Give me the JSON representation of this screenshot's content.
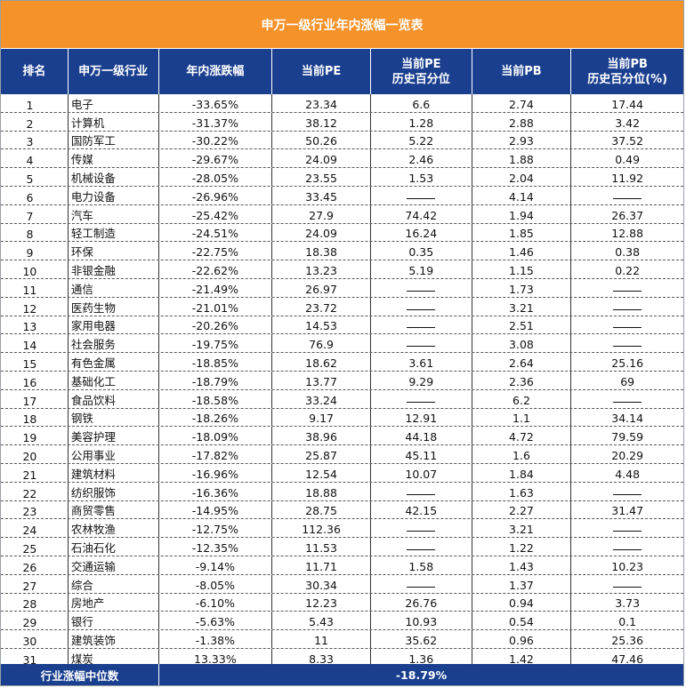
{
  "title": "申万一级行业年内涨幅一览表",
  "headers": [
    "排名",
    "申万一级行业",
    "年内涨跌幅",
    "当前PE",
    "当前PE\n历史百分位",
    "当前PB",
    "当前PB\n历史百分位(%)"
  ],
  "rows": [
    {
      "rank": "1",
      "industry": "电子",
      "change": "-33.65%",
      "pe": "23.34",
      "pe_pct": "6.6",
      "pb": "2.74",
      "pb_pct": "17.44"
    },
    {
      "rank": "2",
      "industry": "计算机",
      "change": "-31.37%",
      "pe": "38.12",
      "pe_pct": "1.28",
      "pb": "2.88",
      "pb_pct": "3.42"
    },
    {
      "rank": "3",
      "industry": "国防军工",
      "change": "-30.22%",
      "pe": "50.26",
      "pe_pct": "5.22",
      "pb": "2.93",
      "pb_pct": "37.52"
    },
    {
      "rank": "4",
      "industry": "传媒",
      "change": "-29.67%",
      "pe": "24.09",
      "pe_pct": "2.46",
      "pb": "1.88",
      "pb_pct": "0.49"
    },
    {
      "rank": "5",
      "industry": "机械设备",
      "change": "-28.05%",
      "pe": "23.55",
      "pe_pct": "1.53",
      "pb": "2.04",
      "pb_pct": "11.92"
    },
    {
      "rank": "6",
      "industry": "电力设备",
      "change": "-26.96%",
      "pe": "33.45",
      "pe_pct": "",
      "pb": "4.14",
      "pb_pct": ""
    },
    {
      "rank": "7",
      "industry": "汽车",
      "change": "-25.42%",
      "pe": "27.9",
      "pe_pct": "74.42",
      "pb": "1.94",
      "pb_pct": "26.37"
    },
    {
      "rank": "8",
      "industry": "轻工制造",
      "change": "-24.51%",
      "pe": "24.09",
      "pe_pct": "16.24",
      "pb": "1.85",
      "pb_pct": "12.88"
    },
    {
      "rank": "9",
      "industry": "环保",
      "change": "-22.75%",
      "pe": "18.38",
      "pe_pct": "0.35",
      "pb": "1.46",
      "pb_pct": "0.38"
    },
    {
      "rank": "10",
      "industry": "非银金融",
      "change": "-22.62%",
      "pe": "13.23",
      "pe_pct": "5.19",
      "pb": "1.15",
      "pb_pct": "0.22"
    },
    {
      "rank": "11",
      "industry": "通信",
      "change": "-21.49%",
      "pe": "26.97",
      "pe_pct": "",
      "pb": "1.73",
      "pb_pct": ""
    },
    {
      "rank": "12",
      "industry": "医药生物",
      "change": "-21.01%",
      "pe": "23.72",
      "pe_pct": "",
      "pb": "3.21",
      "pb_pct": ""
    },
    {
      "rank": "13",
      "industry": "家用电器",
      "change": "-20.26%",
      "pe": "14.53",
      "pe_pct": "",
      "pb": "2.51",
      "pb_pct": ""
    },
    {
      "rank": "14",
      "industry": "社会服务",
      "change": "-19.75%",
      "pe": "76.9",
      "pe_pct": "",
      "pb": "3.08",
      "pb_pct": ""
    },
    {
      "rank": "15",
      "industry": "有色金属",
      "change": "-18.85%",
      "pe": "18.62",
      "pe_pct": "3.61",
      "pb": "2.64",
      "pb_pct": "25.16"
    },
    {
      "rank": "16",
      "industry": "基础化工",
      "change": "-18.79%",
      "pe": "13.77",
      "pe_pct": "9.29",
      "pb": "2.36",
      "pb_pct": "69"
    },
    {
      "rank": "17",
      "industry": "食品饮料",
      "change": "-18.58%",
      "pe": "33.24",
      "pe_pct": "",
      "pb": "6.2",
      "pb_pct": ""
    },
    {
      "rank": "18",
      "industry": "钢铁",
      "change": "-18.26%",
      "pe": "9.17",
      "pe_pct": "12.91",
      "pb": "1.1",
      "pb_pct": "34.14"
    },
    {
      "rank": "19",
      "industry": "美容护理",
      "change": "-18.09%",
      "pe": "38.96",
      "pe_pct": "44.18",
      "pb": "4.72",
      "pb_pct": "79.59"
    },
    {
      "rank": "20",
      "industry": "公用事业",
      "change": "-17.82%",
      "pe": "25.87",
      "pe_pct": "45.11",
      "pb": "1.6",
      "pb_pct": "20.29"
    },
    {
      "rank": "21",
      "industry": "建筑材料",
      "change": "-16.96%",
      "pe": "12.54",
      "pe_pct": "10.07",
      "pb": "1.84",
      "pb_pct": "4.48"
    },
    {
      "rank": "22",
      "industry": "纺织服饰",
      "change": "-16.36%",
      "pe": "18.88",
      "pe_pct": "",
      "pb": "1.63",
      "pb_pct": ""
    },
    {
      "rank": "23",
      "industry": "商贸零售",
      "change": "-14.95%",
      "pe": "28.75",
      "pe_pct": "42.15",
      "pb": "2.27",
      "pb_pct": "31.47"
    },
    {
      "rank": "24",
      "industry": "农林牧渔",
      "change": "-12.75%",
      "pe": "112.36",
      "pe_pct": "",
      "pb": "3.21",
      "pb_pct": ""
    },
    {
      "rank": "25",
      "industry": "石油石化",
      "change": "-12.35%",
      "pe": "11.53",
      "pe_pct": "",
      "pb": "1.22",
      "pb_pct": ""
    },
    {
      "rank": "26",
      "industry": "交通运输",
      "change": "-9.14%",
      "pe": "11.71",
      "pe_pct": "1.58",
      "pb": "1.43",
      "pb_pct": "10.23"
    },
    {
      "rank": "27",
      "industry": "综合",
      "change": "-8.05%",
      "pe": "30.34",
      "pe_pct": "",
      "pb": "1.37",
      "pb_pct": ""
    },
    {
      "rank": "28",
      "industry": "房地产",
      "change": "-6.10%",
      "pe": "12.23",
      "pe_pct": "26.76",
      "pb": "0.94",
      "pb_pct": "3.73"
    },
    {
      "rank": "29",
      "industry": "银行",
      "change": "-5.63%",
      "pe": "5.43",
      "pe_pct": "10.93",
      "pb": "0.54",
      "pb_pct": "0.1"
    },
    {
      "rank": "30",
      "industry": "建筑装饰",
      "change": "-1.38%",
      "pe": "11",
      "pe_pct": "35.62",
      "pb": "0.96",
      "pb_pct": "25.36"
    },
    {
      "rank": "31",
      "industry": "煤炭",
      "change": "13.33%",
      "pe": "8.33",
      "pe_pct": "1.36",
      "pb": "1.42",
      "pb_pct": "47.46"
    }
  ],
  "footer": {
    "label": "行业涨幅中位数",
    "value": "-18.79%"
  },
  "colors": {
    "title_bg": "#f6922a",
    "header_bg": "#1b3f8f",
    "header_text": "#ffffff"
  }
}
